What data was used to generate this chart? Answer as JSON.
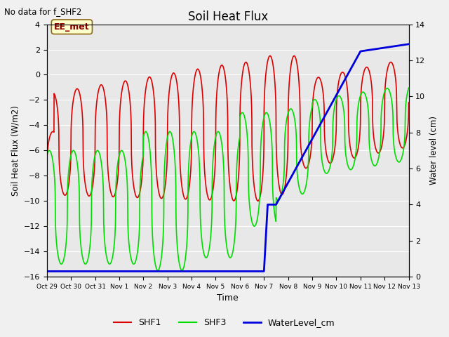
{
  "title": "Soil Heat Flux",
  "top_left_text": "No data for f_SHF2",
  "annotation_box": "EE_met",
  "ylabel_left": "Soil Heat Flux (W/m2)",
  "ylabel_right": "Water level (cm)",
  "xlabel": "Time",
  "ylim_left": [
    -16,
    4
  ],
  "ylim_right": [
    0,
    14
  ],
  "bg_color": "#e8e8e8",
  "fig_bg": "#f0f0f0",
  "xtick_labels": [
    "Oct 29",
    "Oct 30",
    "Oct 31",
    "Nov 1",
    "Nov 2",
    "Nov 3",
    "Nov 4",
    "Nov 5",
    "Nov 6",
    "Nov 7",
    "Nov 8",
    "Nov 9",
    "Nov 10",
    "Nov 11",
    "Nov 12",
    "Nov 13"
  ],
  "shf1_color": "#dd0000",
  "shf3_color": "#00dd00",
  "water_color": "#0000dd",
  "grid_color": "#ffffff",
  "yticks_left": [
    -16,
    -14,
    -12,
    -10,
    -8,
    -6,
    -4,
    -2,
    0,
    2,
    4
  ],
  "yticks_right": [
    0,
    2,
    4,
    6,
    8,
    10,
    12,
    14
  ]
}
